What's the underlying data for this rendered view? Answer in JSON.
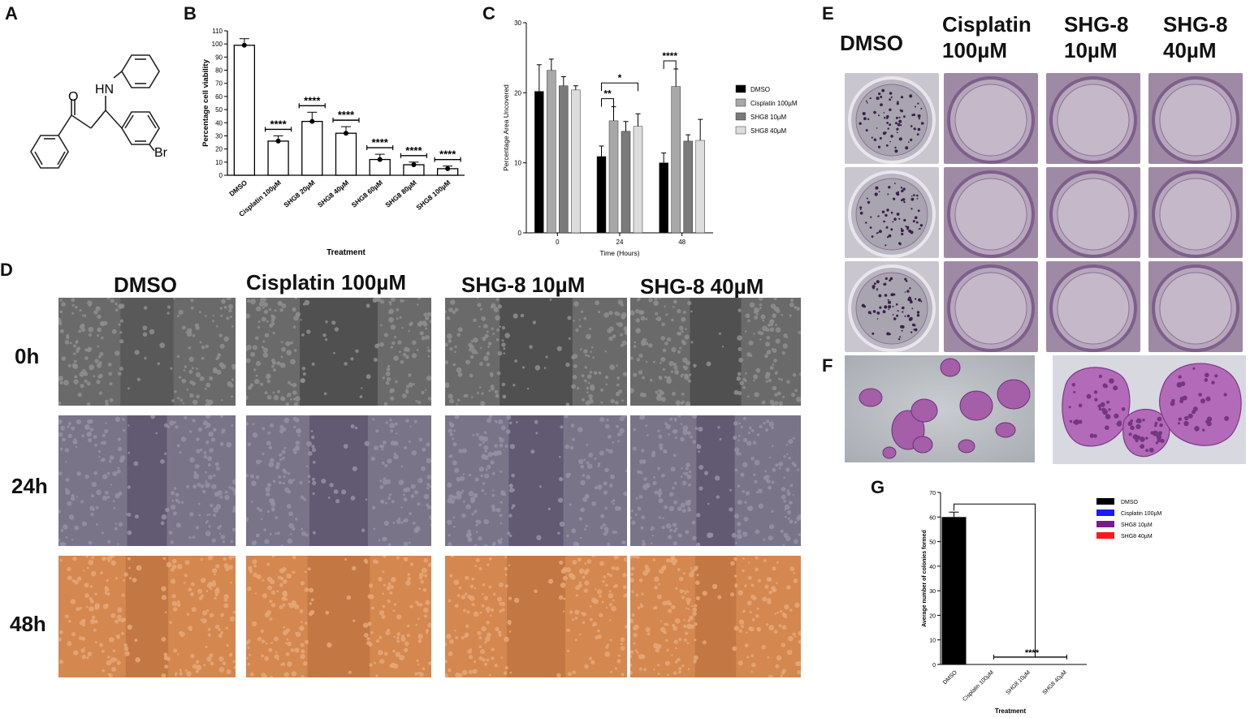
{
  "panels": {
    "A": {
      "letter": "A",
      "atoms": {
        "O": "O",
        "HN": "HN",
        "Br": "Br"
      }
    },
    "B": {
      "letter": "B"
    },
    "C": {
      "letter": "C"
    },
    "D": {
      "letter": "D",
      "columns": [
        "DMSO",
        "Cisplatin 100µM",
        "SHG-8 10µM",
        "SHG-8 40µM"
      ],
      "rows": [
        "0h",
        "24h",
        "48h"
      ]
    },
    "E": {
      "letter": "E",
      "headers": [
        [
          "DMSO"
        ],
        [
          "Cisplatin",
          "100µM"
        ],
        [
          "SHG-8",
          "10µM"
        ],
        [
          "SHG-8",
          "40µM"
        ]
      ]
    },
    "F": {
      "letter": "F"
    },
    "G": {
      "letter": "G"
    }
  },
  "colors": {
    "dmso": "#000000",
    "cisplatin": "#1a1aff",
    "shg8_10": "#7a1a8a",
    "shg8_40": "#ff1a1a"
  },
  "chart_data": [
    {
      "id": "B",
      "type": "bar",
      "categories": [
        "DMSO",
        "Cisplatin 100µM",
        "SHG8 20µM",
        "SHG8 40µM",
        "SHG8 60µM",
        "SHG8 80µM",
        "SHG8 100µM"
      ],
      "values": [
        99,
        26,
        41,
        32,
        12,
        8,
        5
      ],
      "errors": [
        5,
        4,
        7,
        5,
        4,
        2,
        2
      ],
      "significance": [
        "",
        "****",
        "****",
        "****",
        "****",
        "****",
        "****"
      ],
      "xlabel": "Treatment",
      "ylabel": "Percentage cell viability",
      "ylim": [
        0,
        110
      ],
      "yticks": [
        0,
        10,
        20,
        30,
        40,
        50,
        60,
        70,
        80,
        90,
        100,
        110
      ]
    },
    {
      "id": "C",
      "type": "bar",
      "categories": [
        "0",
        "24",
        "48"
      ],
      "series": [
        {
          "name": "DMSO",
          "values": [
            20.2,
            10.9,
            10.0
          ],
          "errors": [
            3.8,
            1.5,
            1.4
          ],
          "color": "#000000"
        },
        {
          "name": "Cisplatin 100µM",
          "values": [
            23.2,
            16.0,
            20.9
          ],
          "errors": [
            1.6,
            2.0,
            2.5
          ],
          "color": "#a8a8a8"
        },
        {
          "name": "SHG8 10µM",
          "values": [
            21.0,
            14.5,
            13.1
          ],
          "errors": [
            1.3,
            1.4,
            0.9
          ],
          "color": "#7a7a7a"
        },
        {
          "name": "SHG8 40µM",
          "values": [
            20.4,
            15.2,
            13.2
          ],
          "errors": [
            0.6,
            1.8,
            3.0
          ],
          "color": "#dcdcdc"
        }
      ],
      "significance": [
        {
          "group": "24",
          "from": 0,
          "to": 1,
          "label": "**"
        },
        {
          "group": "24",
          "from": 0,
          "to": 3,
          "label": "*"
        },
        {
          "group": "48",
          "from": 0,
          "to": 1,
          "label": "****"
        }
      ],
      "xlabel": "Time (Hours)",
      "ylabel": "Percentage Area Uncovered",
      "ylim": [
        0,
        30
      ],
      "yticks": [
        0,
        10,
        20,
        30
      ],
      "legend": "right"
    },
    {
      "id": "G",
      "type": "bar",
      "categories": [
        "DMSO",
        "Cisplatin 100µM",
        "SHG8 10µM",
        "SHG8 40µM"
      ],
      "values": [
        60,
        0,
        0,
        0
      ],
      "errors": [
        2,
        0,
        0,
        0
      ],
      "legend_entries": [
        {
          "name": "DMSO",
          "color": "#000000"
        },
        {
          "name": "Cisplatin 100µM",
          "color": "#1a1aff"
        },
        {
          "name": "SHG8 10µM",
          "color": "#7a1a8a"
        },
        {
          "name": "SHG8 40µM",
          "color": "#ff1a1a"
        }
      ],
      "significance": "****",
      "xlabel": "Treatment",
      "ylabel": "Average number of colonies formed",
      "ylim": [
        0,
        70
      ],
      "yticks": [
        0,
        10,
        20,
        30,
        40,
        50,
        60,
        70
      ],
      "legend": "right"
    }
  ]
}
